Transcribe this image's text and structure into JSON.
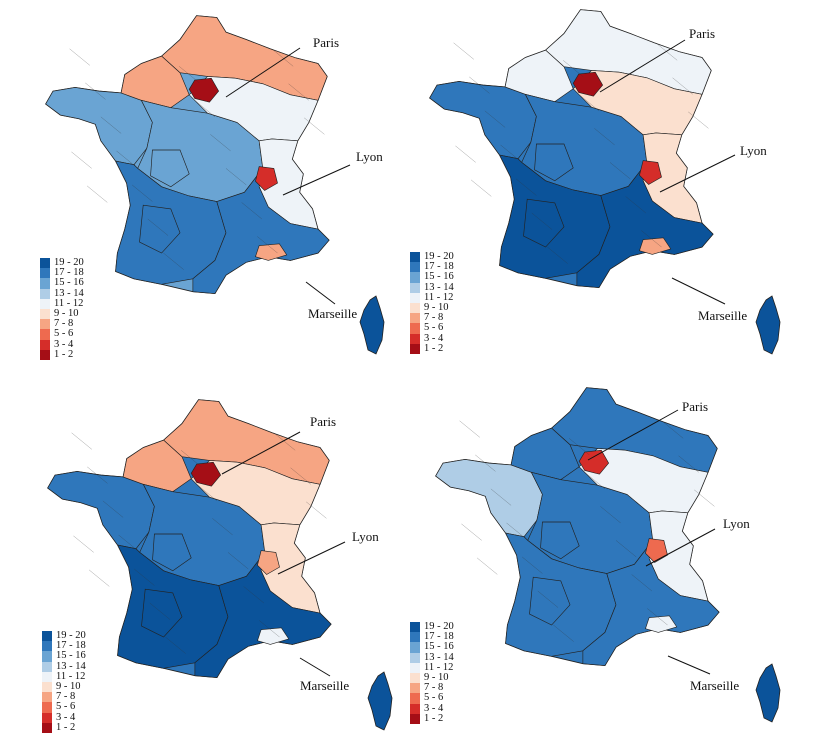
{
  "legend": {
    "classes": [
      {
        "label": "19 - 20",
        "color": "#0b539a"
      },
      {
        "label": "17 - 18",
        "color": "#2f77bb"
      },
      {
        "label": "15 - 16",
        "color": "#6aa4d3"
      },
      {
        "label": "13 - 14",
        "color": "#afcde6"
      },
      {
        "label": "11 - 12",
        "color": "#eef3f8"
      },
      {
        "label": "9 - 10",
        "color": "#fbe0cf"
      },
      {
        "label": "7 - 8",
        "color": "#f6a583"
      },
      {
        "label": "5 - 6",
        "color": "#ee6a4f"
      },
      {
        "label": "3 - 4",
        "color": "#d52d29"
      },
      {
        "label": "1 - 2",
        "color": "#a50e16"
      }
    ]
  },
  "cities": {
    "paris": "Paris",
    "lyon": "Lyon",
    "marseille": "Marseille"
  },
  "maps": [
    {
      "id": "top-left",
      "tint": {
        "north": 7,
        "paris": 2,
        "west": 15,
        "center": 16,
        "south": 17,
        "east": 11,
        "lyon": 4,
        "marseille": 8
      },
      "corsica_shown": true
    },
    {
      "id": "top-right",
      "tint": {
        "north": 11,
        "paris": 2,
        "west": 17,
        "center": 18,
        "south": 19,
        "east": 9,
        "lyon": 4,
        "marseille": 7
      },
      "corsica_shown": true
    },
    {
      "id": "bottom-left",
      "tint": {
        "north": 8,
        "paris": 1,
        "west": 17,
        "center": 18,
        "south": 19,
        "east": 10,
        "lyon": 7,
        "marseille": 11
      },
      "corsica_shown": true
    },
    {
      "id": "bottom-right",
      "tint": {
        "north": 17,
        "paris": 3,
        "west": 14,
        "center": 18,
        "south": 17,
        "east": 11,
        "lyon": 5,
        "marseille": 12
      },
      "corsica_shown": true
    }
  ]
}
